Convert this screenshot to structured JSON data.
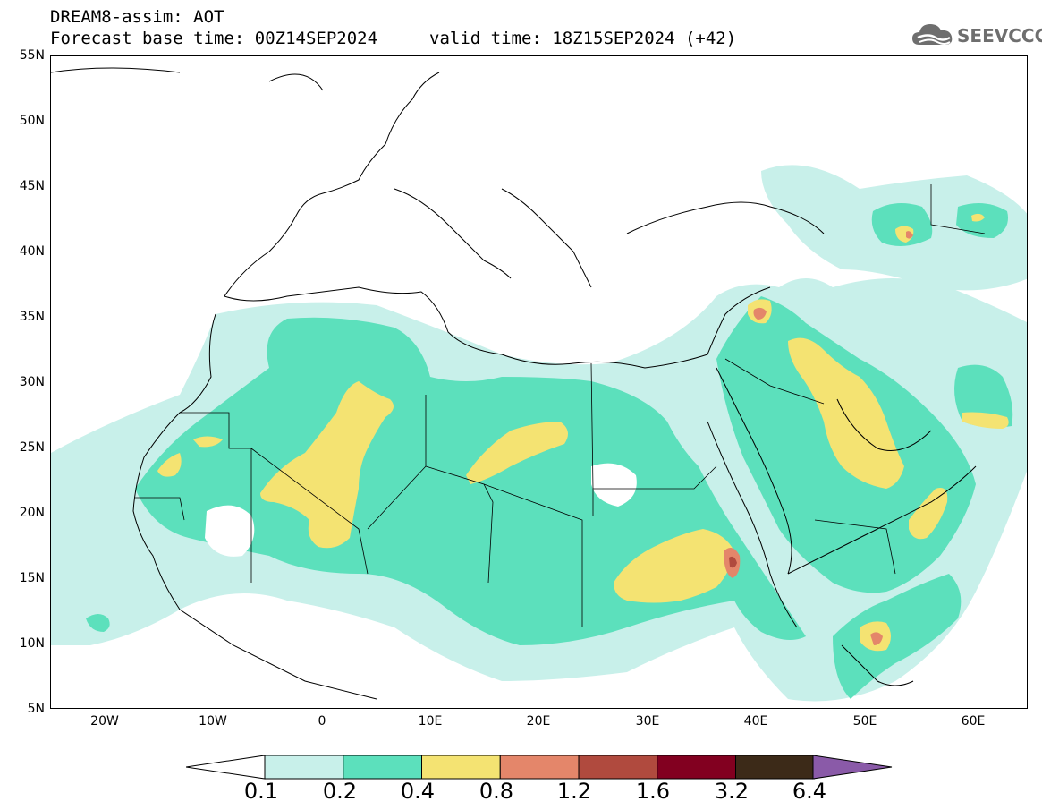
{
  "header": {
    "title": "DREAM8-assim: AOT",
    "base_time": "Forecast base time: 00Z14SEP2024",
    "valid_time": "valid time: 18Z15SEP2024 (+42)"
  },
  "logo": {
    "text": "SEEVCCC",
    "icon": "cloud-icon"
  },
  "map": {
    "variable": "AOT",
    "lat_labels": [
      "55N",
      "50N",
      "45N",
      "40N",
      "35N",
      "30N",
      "25N",
      "20N",
      "15N",
      "10N",
      "5N"
    ],
    "lon_labels": [
      "20W",
      "10W",
      "0",
      "10E",
      "20E",
      "30E",
      "40E",
      "50E",
      "60E"
    ],
    "lat_range": [
      5,
      55
    ],
    "lon_range": [
      -25,
      65
    ]
  },
  "colorbar": {
    "levels": [
      "0.1",
      "0.2",
      "0.4",
      "0.8",
      "1.2",
      "1.6",
      "3.2",
      "6.4"
    ],
    "colors": [
      "#c8f0ea",
      "#5ce0bc",
      "#f4e372",
      "#e4866a",
      "#b04a3e",
      "#820020",
      "#3c2a18",
      "#8a5aa8"
    ],
    "under_color": "#ffffff",
    "over_color": "#8a5aa8"
  },
  "palette": {
    "c1": "#c8f0ea",
    "c2": "#5ce0bc",
    "c3": "#f4e372",
    "c4": "#e4866a",
    "c5": "#b04a3e"
  }
}
